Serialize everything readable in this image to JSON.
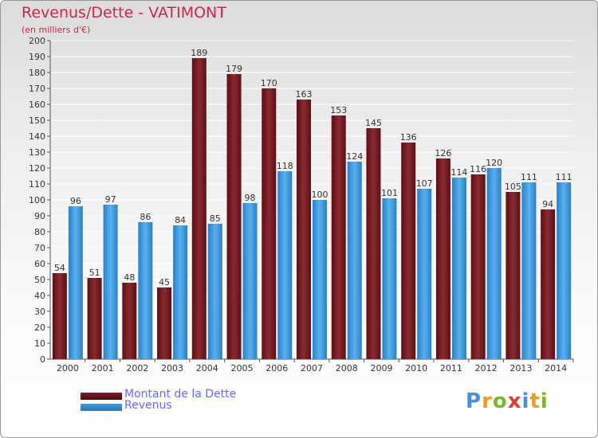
{
  "header": {
    "title": "Revenus/Dette - VATIMONT",
    "subtitle": "(en milliers d'€)"
  },
  "legend": {
    "items": [
      {
        "label": "Montant de la Dette",
        "color": "#7a1f25"
      },
      {
        "label": "Revenus",
        "color": "#3e9ad8"
      }
    ]
  },
  "logo": {
    "text": "Proxiti"
  },
  "chart_data": {
    "type": "bar",
    "categories": [
      "2000",
      "2001",
      "2002",
      "2003",
      "2004",
      "2005",
      "2006",
      "2007",
      "2008",
      "2009",
      "2010",
      "2011",
      "2012",
      "2013",
      "2014"
    ],
    "series": [
      {
        "name": "Montant de la Dette",
        "color": "#7a1f25",
        "values": [
          54,
          51,
          48,
          45,
          189,
          179,
          170,
          163,
          153,
          145,
          136,
          126,
          116,
          105,
          94
        ]
      },
      {
        "name": "Revenus",
        "color": "#3e9ad8",
        "values": [
          96,
          97,
          86,
          84,
          85,
          98,
          118,
          100,
          124,
          101,
          107,
          114,
          120,
          111,
          111
        ]
      }
    ],
    "ylim": [
      0,
      200
    ],
    "yticks": [
      0,
      10,
      20,
      30,
      40,
      50,
      60,
      70,
      80,
      90,
      100,
      110,
      120,
      130,
      140,
      150,
      160,
      170,
      180,
      190,
      200
    ],
    "grid": true,
    "legend_position": "bottom-left"
  }
}
